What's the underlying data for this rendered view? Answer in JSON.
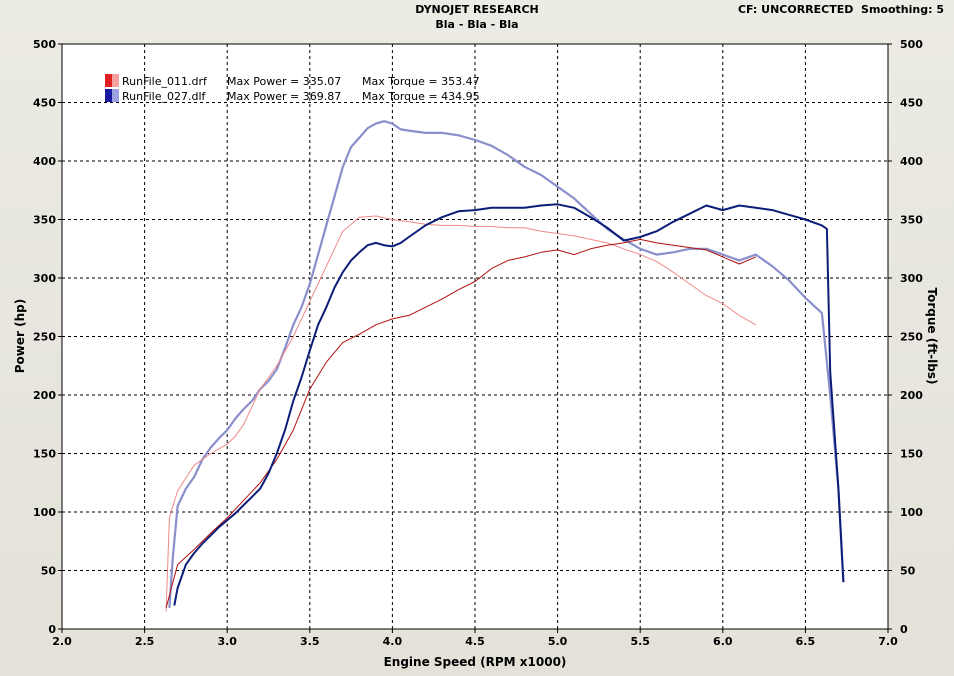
{
  "header": {
    "title": "DYNOJET RESEARCH",
    "subtitle": "Bla - Bla - Bla",
    "right": "CF: UNCORRECTED  Smoothing: 5"
  },
  "chart_data": {
    "type": "line",
    "xlabel": "Engine Speed (RPM x1000)",
    "ylabel_left": "Power (hp)",
    "ylabel_right": "Torque (ft-lbs)",
    "xlim": [
      2.0,
      7.0
    ],
    "ylim": [
      0,
      500
    ],
    "x_ticks": [
      "2.0",
      "2.5",
      "3.0",
      "3.5",
      "4.0",
      "4.5",
      "5.0",
      "5.5",
      "6.0",
      "6.5",
      "7.0"
    ],
    "y_ticks": [
      "0",
      "50",
      "100",
      "150",
      "200",
      "250",
      "300",
      "350",
      "400",
      "450",
      "500"
    ],
    "grid": true,
    "legend_position": "top-left",
    "colors": {
      "run1_power": "#b01010",
      "run1_torque": "#f08a8a",
      "run2_power": "#0c1d78",
      "run2_torque": "#8a8fcc"
    },
    "legend": [
      {
        "run": "RunFile_011.drf",
        "power_label": "Max Power = 335.07",
        "torque_label": "Max Torque = 353.47",
        "color_a": "#e02020",
        "color_b": "#f5a0a0"
      },
      {
        "run": "RunFile_027.dlf",
        "power_label": "Max Power = 369.87",
        "torque_label": "Max Torque = 434.95",
        "color_a": "#1a1aa0",
        "color_b": "#9aa0e0"
      }
    ],
    "series": [
      {
        "key": "run2_torque",
        "x": [
          2.65,
          2.67,
          2.7,
          2.75,
          2.8,
          2.85,
          2.9,
          2.95,
          3.0,
          3.05,
          3.1,
          3.15,
          3.2,
          3.25,
          3.3,
          3.35,
          3.4,
          3.45,
          3.5,
          3.55,
          3.6,
          3.65,
          3.7,
          3.75,
          3.8,
          3.85,
          3.9,
          3.95,
          4.0,
          4.05,
          4.1,
          4.2,
          4.3,
          4.4,
          4.5,
          4.6,
          4.7,
          4.8,
          4.9,
          5.0,
          5.1,
          5.2,
          5.3,
          5.4,
          5.5,
          5.6,
          5.7,
          5.8,
          5.9,
          6.0,
          6.1,
          6.2,
          6.3,
          6.4,
          6.5,
          6.6,
          6.65,
          6.7,
          6.73
        ],
        "values": [
          18,
          60,
          105,
          120,
          130,
          145,
          155,
          163,
          170,
          180,
          188,
          195,
          205,
          212,
          222,
          240,
          260,
          275,
          295,
          320,
          345,
          370,
          395,
          412,
          420,
          428,
          432,
          434,
          432,
          427,
          426,
          424,
          424,
          422,
          418,
          413,
          405,
          395,
          388,
          378,
          368,
          355,
          342,
          333,
          325,
          320,
          322,
          325,
          325,
          320,
          315,
          320,
          310,
          298,
          283,
          270,
          200,
          120,
          40
        ]
      },
      {
        "key": "run1_torque",
        "x": [
          2.63,
          2.65,
          2.7,
          2.8,
          2.9,
          3.0,
          3.05,
          3.1,
          3.15,
          3.2,
          3.25,
          3.3,
          3.4,
          3.5,
          3.6,
          3.7,
          3.8,
          3.9,
          4.0,
          4.1,
          4.2,
          4.3,
          4.4,
          4.5,
          4.6,
          4.7,
          4.8,
          4.9,
          5.0,
          5.1,
          5.2,
          5.3,
          5.4,
          5.5,
          5.6,
          5.7,
          5.8,
          5.9,
          6.0,
          6.1,
          6.2
        ],
        "values": [
          15,
          95,
          118,
          140,
          150,
          158,
          165,
          175,
          190,
          205,
          215,
          225,
          250,
          280,
          310,
          340,
          352,
          353,
          350,
          348,
          346,
          345,
          345,
          344,
          344,
          343,
          343,
          340,
          338,
          336,
          333,
          330,
          325,
          320,
          314,
          305,
          295,
          285,
          278,
          268,
          260
        ]
      },
      {
        "key": "run1_power",
        "x": [
          2.63,
          2.7,
          2.8,
          2.9,
          3.0,
          3.1,
          3.2,
          3.3,
          3.4,
          3.5,
          3.6,
          3.7,
          3.8,
          3.9,
          4.0,
          4.1,
          4.2,
          4.3,
          4.4,
          4.5,
          4.6,
          4.7,
          4.8,
          4.9,
          5.0,
          5.1,
          5.2,
          5.3,
          5.4,
          5.5,
          5.6,
          5.7,
          5.8,
          5.9,
          6.0,
          6.1,
          6.2
        ],
        "values": [
          18,
          55,
          68,
          82,
          95,
          110,
          125,
          145,
          170,
          205,
          228,
          245,
          252,
          260,
          265,
          268,
          275,
          282,
          290,
          297,
          308,
          315,
          318,
          322,
          324,
          320,
          325,
          328,
          330,
          333,
          330,
          328,
          326,
          324,
          318,
          312,
          318
        ]
      },
      {
        "key": "run2_power",
        "x": [
          2.68,
          2.7,
          2.75,
          2.8,
          2.85,
          2.9,
          2.95,
          3.0,
          3.05,
          3.1,
          3.15,
          3.2,
          3.25,
          3.3,
          3.35,
          3.4,
          3.45,
          3.5,
          3.55,
          3.6,
          3.65,
          3.7,
          3.75,
          3.8,
          3.85,
          3.9,
          3.95,
          4.0,
          4.05,
          4.1,
          4.2,
          4.3,
          4.4,
          4.5,
          4.6,
          4.7,
          4.8,
          4.9,
          5.0,
          5.1,
          5.2,
          5.3,
          5.4,
          5.5,
          5.6,
          5.7,
          5.8,
          5.9,
          6.0,
          6.1,
          6.2,
          6.3,
          6.4,
          6.5,
          6.6,
          6.63,
          6.65,
          6.7,
          6.73
        ],
        "values": [
          20,
          35,
          55,
          65,
          73,
          80,
          87,
          93,
          99,
          106,
          113,
          120,
          133,
          150,
          170,
          195,
          215,
          238,
          260,
          275,
          292,
          305,
          315,
          322,
          328,
          330,
          328,
          327,
          330,
          335,
          345,
          352,
          357,
          358,
          360,
          360,
          360,
          362,
          363,
          360,
          352,
          343,
          332,
          335,
          340,
          348,
          355,
          362,
          358,
          362,
          360,
          358,
          354,
          350,
          345,
          342,
          220,
          120,
          40
        ]
      }
    ]
  }
}
